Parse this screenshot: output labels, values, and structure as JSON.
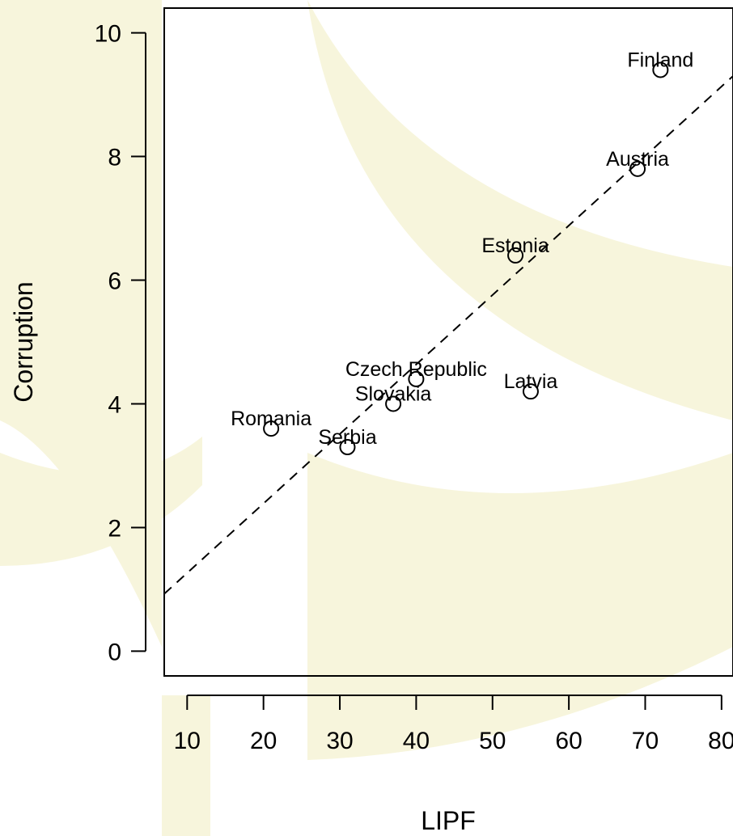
{
  "colors": {
    "background": "#ffffff",
    "watermark": "#f7f5dc",
    "ink": "#000000"
  },
  "chart_data": {
    "type": "scatter",
    "xlabel": "LIPF",
    "ylabel": "Corruption",
    "xlim": [
      7,
      81.5
    ],
    "ylim": [
      -0.4,
      10.4
    ],
    "x_ticks": [
      10,
      20,
      30,
      40,
      50,
      60,
      70,
      80
    ],
    "y_ticks": [
      0,
      2,
      4,
      6,
      8,
      10
    ],
    "grid": false,
    "legend": "none",
    "points": [
      {
        "label": "Finland",
        "x": 72,
        "y": 9.4
      },
      {
        "label": "Austria",
        "x": 69,
        "y": 7.8
      },
      {
        "label": "Estonia",
        "x": 53,
        "y": 6.4
      },
      {
        "label": "Czech Republic",
        "x": 40,
        "y": 4.4
      },
      {
        "label": "Latvia",
        "x": 55,
        "y": 4.2
      },
      {
        "label": "Slovakia",
        "x": 37,
        "y": 4.0
      },
      {
        "label": "Romania",
        "x": 21,
        "y": 3.6
      },
      {
        "label": "Serbia",
        "x": 31,
        "y": 3.3
      }
    ],
    "fit_line": {
      "style": "dashed",
      "intercept": 0.14,
      "slope": 0.1124
    }
  }
}
